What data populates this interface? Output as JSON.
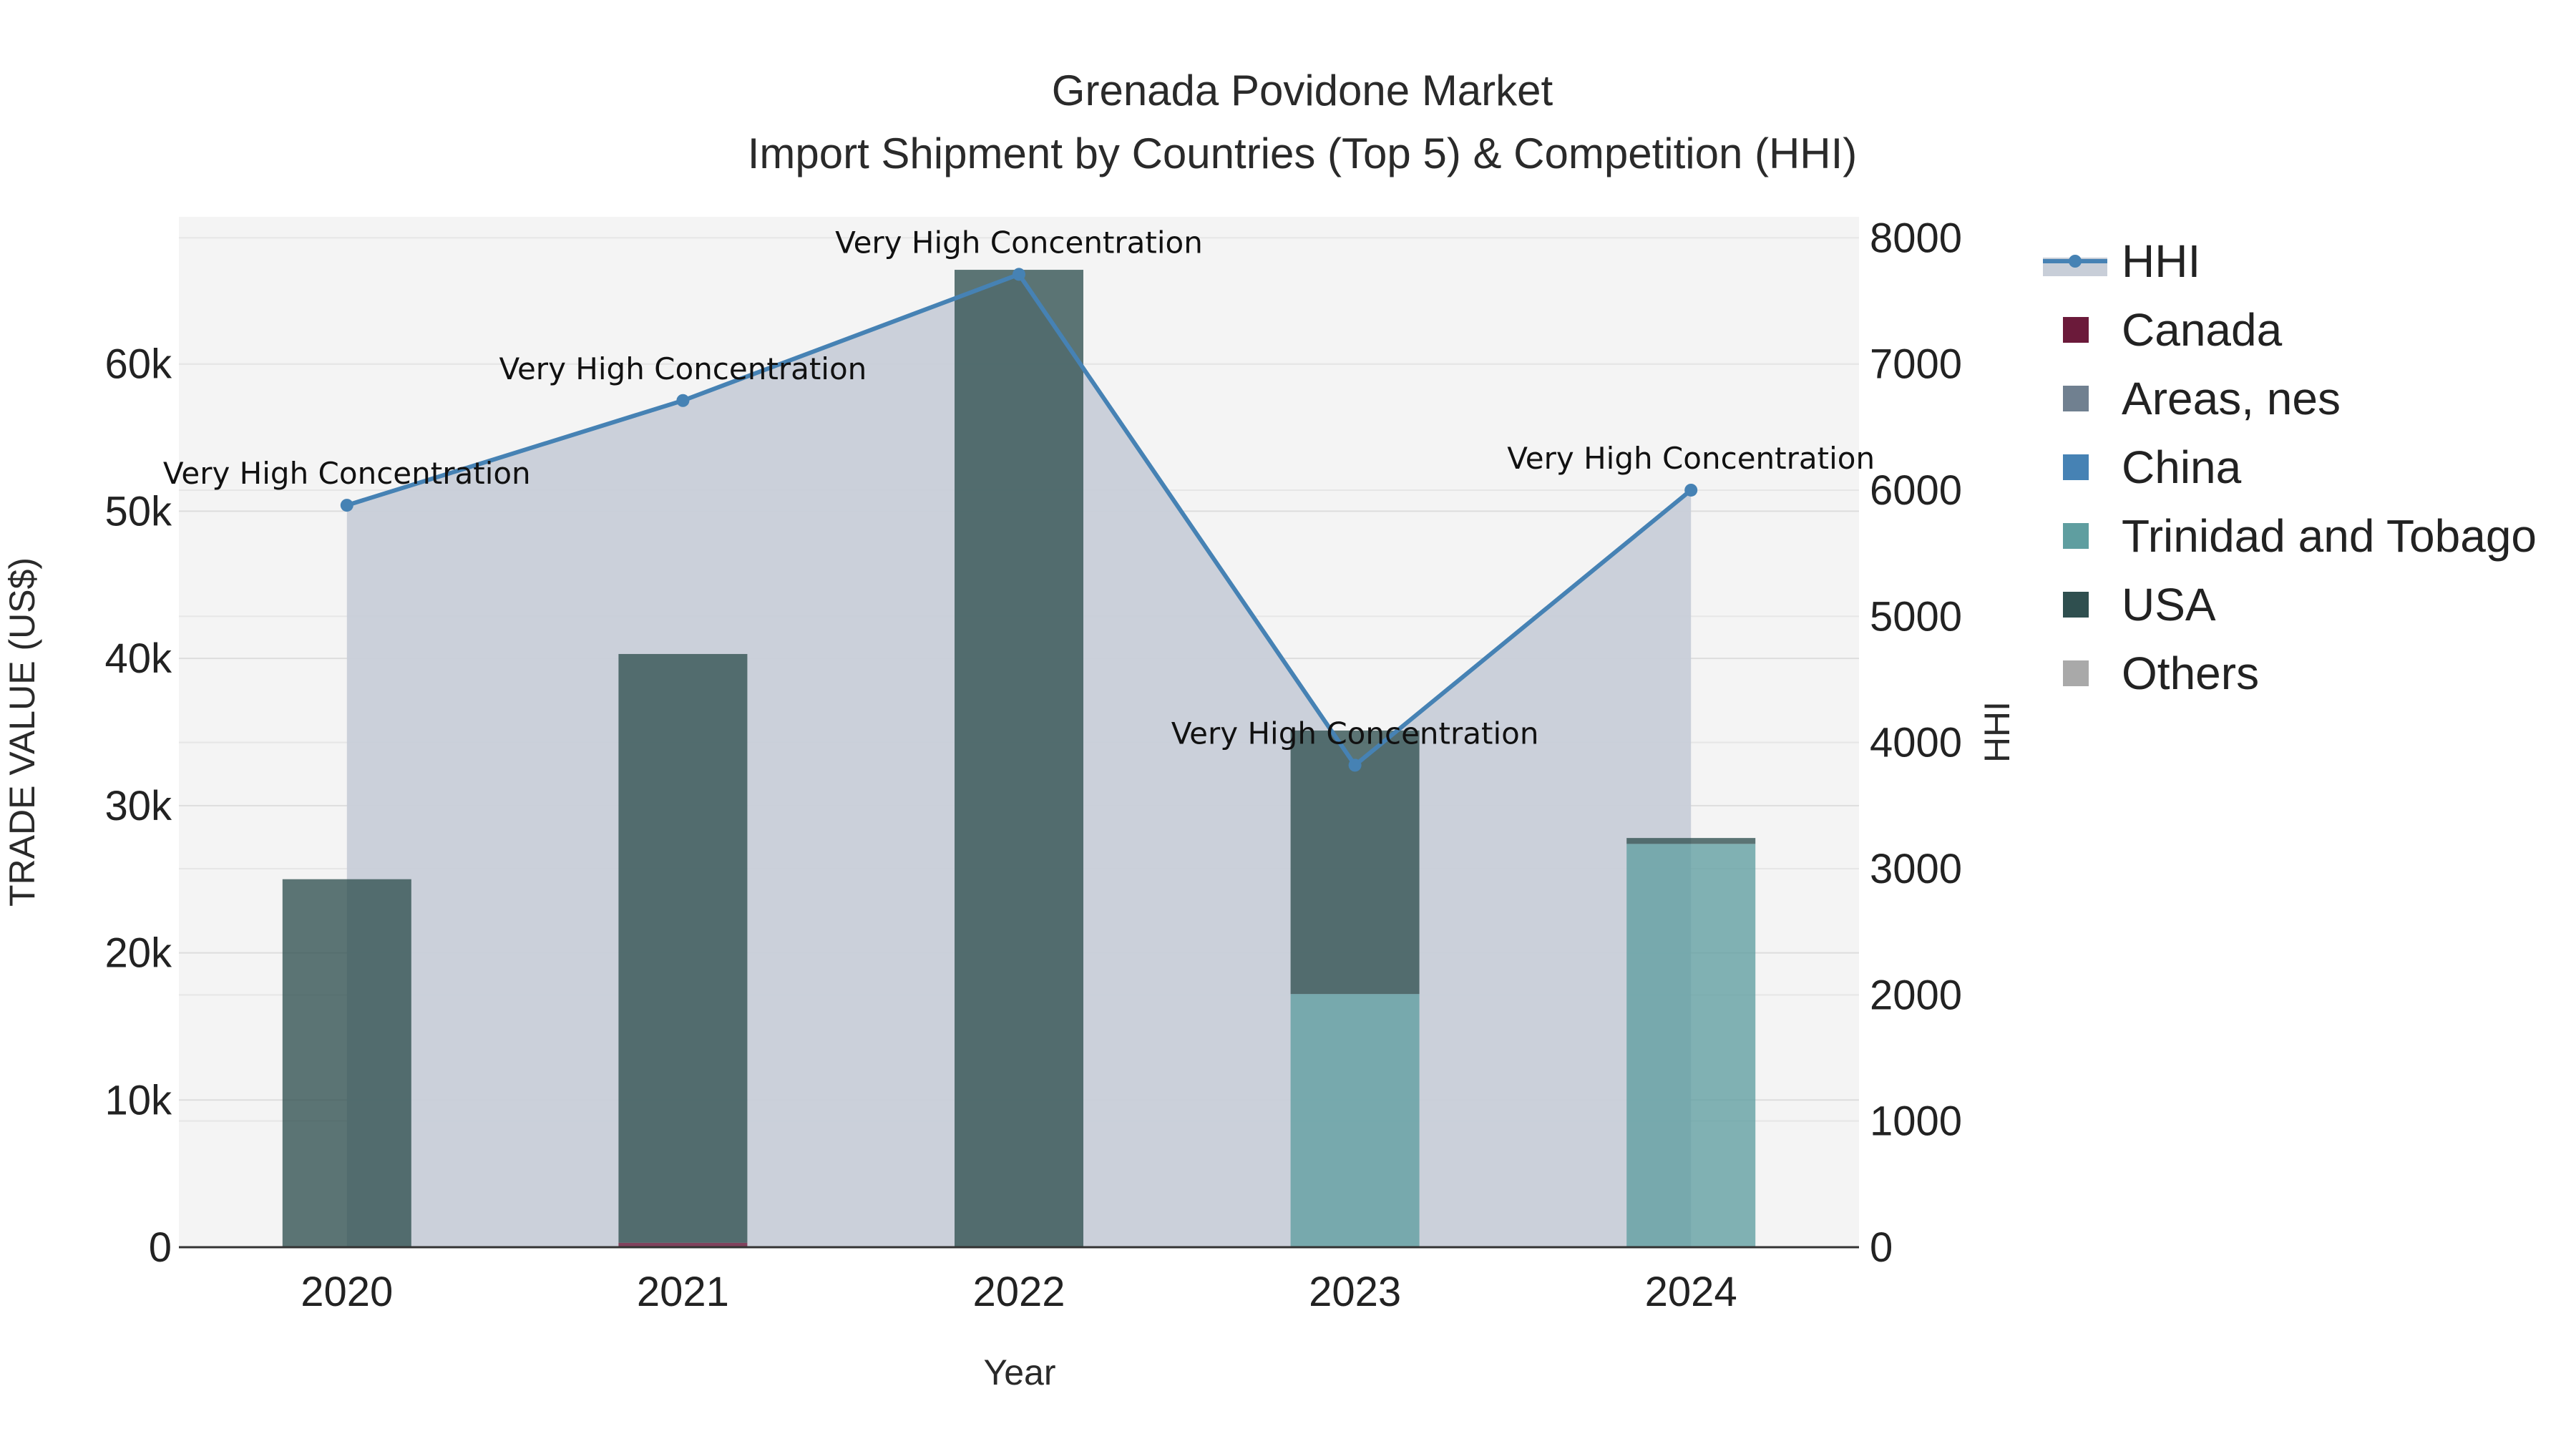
{
  "chart_data": {
    "type": "bar",
    "barmode": "stack",
    "title": "Grenada Povidone Market",
    "subtitle": "Import Shipment by Countries (Top 5) & Competition (HHI)",
    "xlabel": "Year",
    "ylabel": "TRADE VALUE (US$)",
    "y2label": "HHI",
    "categories": [
      "2020",
      "2021",
      "2022",
      "2023",
      "2024"
    ],
    "ylim": [
      0,
      70000
    ],
    "y2lim": [
      0,
      8166
    ],
    "yticks": [
      0,
      10000,
      20000,
      30000,
      40000,
      50000,
      60000
    ],
    "ytick_labels": [
      "0",
      "10k",
      "20k",
      "30k",
      "40k",
      "50k",
      "60k"
    ],
    "y2ticks": [
      0,
      1000,
      2000,
      3000,
      4000,
      5000,
      6000,
      7000,
      8000
    ],
    "y2tick_labels": [
      "0",
      "1000",
      "2000",
      "3000",
      "4000",
      "5000",
      "6000",
      "7000",
      "8000"
    ],
    "series": [
      {
        "name": "Canada",
        "color": "#6b1a3a",
        "values": [
          0,
          300,
          0,
          0,
          0
        ]
      },
      {
        "name": "Areas, nes",
        "color": "#708090",
        "values": [
          0,
          0,
          0,
          0,
          0
        ]
      },
      {
        "name": "China",
        "color": "#4682b4",
        "values": [
          0,
          0,
          0,
          0,
          0
        ]
      },
      {
        "name": "Trinidad and Tobago",
        "color": "#5f9ea0",
        "values": [
          0,
          0,
          0,
          17200,
          27400
        ]
      },
      {
        "name": "USA",
        "color": "#2f4f4f",
        "values": [
          25000,
          40000,
          66400,
          17900,
          400
        ]
      },
      {
        "name": "Others",
        "color": "#a9a9a9",
        "values": [
          0,
          0,
          0,
          0,
          0
        ]
      }
    ],
    "hhi": {
      "name": "HHI",
      "color": "#4682b4",
      "fill": "#c8ced8",
      "values": [
        5880,
        6710,
        7710,
        3820,
        6000
      ],
      "annotations": [
        "Very High Concentration",
        "Very High Concentration",
        "Very High Concentration",
        "Very High Concentration",
        "Very High Concentration"
      ]
    },
    "legend_position": "right"
  }
}
